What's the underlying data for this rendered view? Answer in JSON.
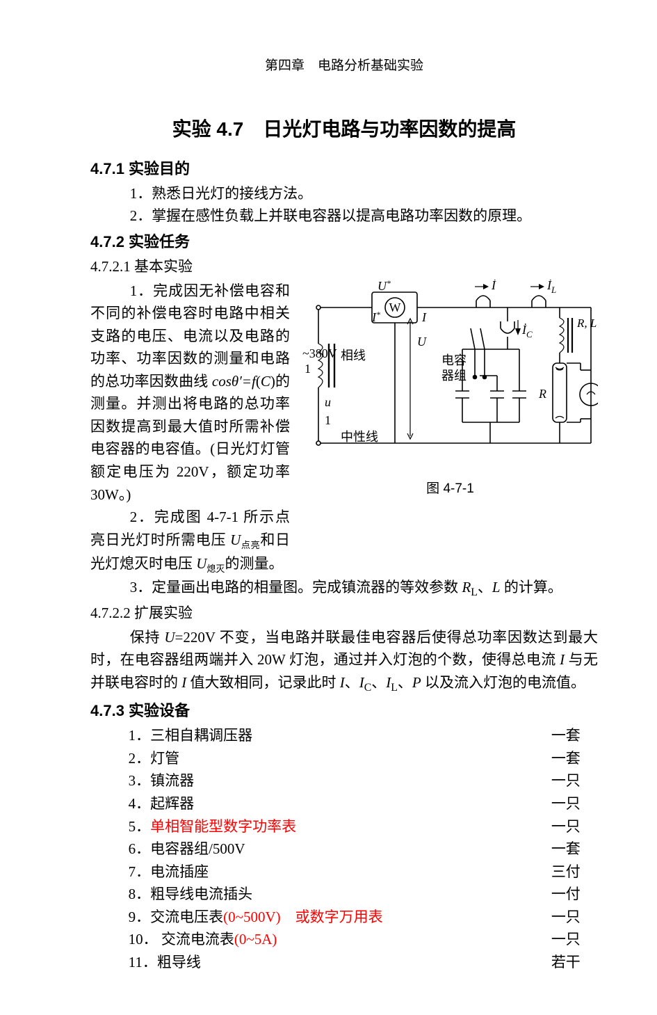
{
  "pageHeader": "第四章 电路分析基础实验",
  "title": "实验 4.7 日光灯电路与功率因数的提高",
  "section_4_7_1": {
    "heading": "4.7.1 实验目的",
    "items": {
      "p1": "1．熟悉日光灯的接线方法。",
      "p2": "2．掌握在感性负载上并联电容器以提高电路功率因数的原理。"
    }
  },
  "section_4_7_2": {
    "heading": "4.7.2 实验任务",
    "sub1": {
      "heading": "4.7.2.1 基本实验",
      "p1_a": "1．完成因无补偿电容和不同的补偿电容时电路中相关支路的电压、电流以及电路的功率、功率因数的测量和电路的总功率因数曲线 ",
      "p1_b": "cosθ′=f",
      "p1_c": "(",
      "p1_d": "C",
      "p1_e": ")的测量。并测出将电路的总功率因数提高到最大值时所需补偿电容器的电容值。(日光灯灯管额定电压为 220V，额定功率 30W。)",
      "p2_a": "2．完成图 4-7-1 所示点亮日光灯时所需电压 ",
      "p2_b": "U",
      "p2_c": "点亮",
      "p2_d": "和日光灯熄灭时电压 ",
      "p2_e": "U",
      "p2_f": "熄灭",
      "p2_g": "的测量。",
      "p3_a": "3．定量画出电路的相量图。完成镇流器的等效参数 ",
      "p3_b": "R",
      "p3_c": "L",
      "p3_d": "、",
      "p3_e": "L",
      "p3_f": " 的计算。"
    },
    "sub2": {
      "heading": "4.7.2.2 扩展实验",
      "p1_a": "保持 ",
      "p1_b": "U",
      "p1_c": "=220V 不变，当电路并联最佳电容器后使得总功率因数达到最大时，在电容器组两端并入 20W 灯泡，通过并入灯泡的个数，使得总电流 ",
      "p1_d": "I",
      "p1_e": " 与无并联电容时的 ",
      "p1_f": "I",
      "p1_g": " 值大致相同，记录此时 ",
      "p1_h": "I",
      "p1_i": "、",
      "p1_j": "I",
      "p1_k": "C",
      "p1_l": "、",
      "p1_m": "I",
      "p1_n": "L",
      "p1_o": "、",
      "p1_p": "P",
      "p1_q": " 以及流入灯泡的电流值。"
    }
  },
  "section_4_7_3": {
    "heading": "4.7.3 实验设备",
    "rows": [
      {
        "idx": "1．",
        "name": "三相自耦调压器",
        "red": "",
        "qty": "一套"
      },
      {
        "idx": "2．",
        "name": "灯管",
        "red": "",
        "qty": "一套"
      },
      {
        "idx": "3．",
        "name": "镇流器",
        "red": "",
        "qty": "一只"
      },
      {
        "idx": "4．",
        "name": "起辉器",
        "red": "",
        "qty": "一只"
      },
      {
        "idx": "5．",
        "name": "",
        "red": "单相智能型数字功率表",
        "qty": "一只"
      },
      {
        "idx": "6．",
        "name": "电容器组/500V",
        "red": "",
        "qty": "一套"
      },
      {
        "idx": "7．",
        "name": "电流插座",
        "red": "",
        "qty": "三付"
      },
      {
        "idx": "8．",
        "name": "粗导线电流插头",
        "red": "",
        "qty": "一付"
      },
      {
        "idx": "9．",
        "name": "交流电压表",
        "red": "(0~500V) 或数字万用表",
        "qty": "一只"
      },
      {
        "idx": "10．",
        "name": " 交流电流表",
        "red": "(0~5A)",
        "qty": "一只"
      },
      {
        "idx": "11．",
        "name": "粗导线",
        "red": "",
        "qty": "若干"
      }
    ]
  },
  "figure": {
    "caption": "图 4-7-1",
    "labels": {
      "W": "W",
      "U_star": "U",
      "I_star_top": "I",
      "I_label": "I",
      "dotI": "İ",
      "dotIL": "İ",
      "L_sub": "L",
      "dotIC": "İ",
      "C_sub": "C",
      "U_big": "U",
      "RL": "R, L",
      "volt": "~380V",
      "phase": "相线",
      "neutral": "中性线",
      "cap_group_1": "电容",
      "cap_group_2": "器组",
      "R_label": "R",
      "one": "1",
      "u_small": "u",
      "one2": "1"
    },
    "style": {
      "stroke": "#000000",
      "stroke_width": 1.6,
      "stroke_width_thin": 1.2,
      "bg": "#ffffff",
      "font_family_it": "Times New Roman",
      "font_family_cn": "SimSun",
      "font_size_label": 18,
      "font_size_small": 15
    }
  }
}
